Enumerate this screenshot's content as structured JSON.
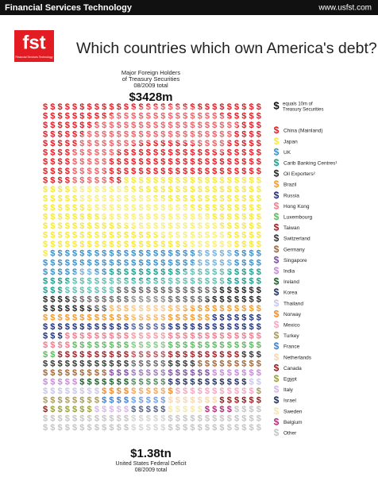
{
  "header": {
    "brand": "Financial Services Technology",
    "url": "www.usfst.com"
  },
  "logo": {
    "text": "fst",
    "caption": "Financial Services Technology"
  },
  "chart_data": {
    "type": "pictograph",
    "title": "Which countries which own America's debt?",
    "subtitle": [
      "Major Foreign Holders",
      "of Treasury Securities",
      "08/2009 total"
    ],
    "total_label": "$3428m",
    "symbol": "$",
    "unit_note": [
      "equals 10m of",
      "Treasury Securities"
    ],
    "footer_value": "$1.38tn",
    "footer_text": [
      "United States Federal Deficit",
      "08/2009 total"
    ],
    "categories": [
      "China (Mainland)",
      "Japan",
      "UK",
      "Carib Banking Centres¹",
      "Oil Exporters²",
      "Brazil",
      "Russia",
      "Hong Kong",
      "Luxembourg",
      "Taiwan",
      "Switzerland",
      "Germany",
      "Singapore",
      "India",
      "Ireland",
      "Korea",
      "Thailand",
      "Norway",
      "Mexico",
      "Turkey",
      "France",
      "Netherlands",
      "Canada",
      "Egypt",
      "Italy",
      "Israel",
      "Sweden",
      "Belgium",
      "Other"
    ],
    "values": [
      797.1,
      731.1,
      214.2,
      193.5,
      188.4,
      139.8,
      125.8,
      98.1,
      89.3,
      78.4,
      77.5,
      56.5,
      44.4,
      38.9,
      36.5,
      34.9,
      33.9,
      31.6,
      35.4,
      28.2,
      27.0,
      23.7,
      22.8,
      16.0,
      16.0,
      17.9,
      14.9,
      14.1,
      202.1
    ],
    "colors": [
      "#e31b23",
      "#f5e93a",
      "#3a8fc9",
      "#1a9e8f",
      "#222222",
      "#f39a2a",
      "#1f2f7a",
      "#f07a8a",
      "#5bb85c",
      "#a01c24",
      "#333333",
      "#a0673a",
      "#7a4fa0",
      "#c58ad8",
      "#1a5e2a",
      "#203060",
      "#c9c5e8",
      "#f08a2a",
      "#f4a6c4",
      "#a89a5a",
      "#3d7fd0",
      "#f6d7b0",
      "#8e1a1a",
      "#9aa03a",
      "#d7b6e6",
      "#1e2a5a",
      "#f3e7b0",
      "#b0307a",
      "#c4c4c4"
    ]
  }
}
